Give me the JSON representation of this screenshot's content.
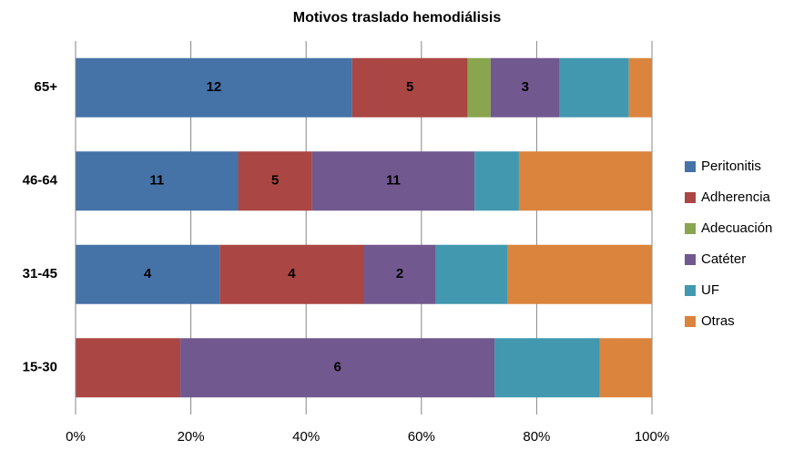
{
  "chart_data": {
    "type": "bar",
    "orientation": "horizontal",
    "stacked": "percent",
    "title": "Motivos traslado hemodiálisis",
    "categories": [
      "65+",
      "46-64",
      "31-45",
      "15-30"
    ],
    "series": [
      {
        "name": "Peritonitis",
        "color": "#4572a7",
        "values": [
          12,
          11,
          4,
          0
        ],
        "value_labels": [
          "12",
          "11",
          "4",
          null
        ]
      },
      {
        "name": "Adherencia",
        "color": "#aa4643",
        "values": [
          5,
          5,
          4,
          2
        ],
        "value_labels": [
          "5",
          "5",
          "4",
          null
        ]
      },
      {
        "name": "Adecuación",
        "color": "#89a54e",
        "values": [
          1,
          0,
          0,
          0
        ],
        "value_labels": [
          null,
          null,
          null,
          null
        ]
      },
      {
        "name": "Catéter",
        "color": "#71588f",
        "values": [
          3,
          11,
          2,
          6
        ],
        "value_labels": [
          "3",
          "11",
          "2",
          "6"
        ]
      },
      {
        "name": "UF",
        "color": "#4198af",
        "values": [
          3,
          3,
          2,
          2
        ],
        "value_labels": [
          null,
          null,
          null,
          null
        ]
      },
      {
        "name": "Otras",
        "color": "#db843d",
        "values": [
          1,
          9,
          4,
          1
        ],
        "value_labels": [
          null,
          null,
          null,
          null
        ]
      }
    ],
    "xlim": [
      0,
      100
    ],
    "xticks": [
      {
        "value": 0,
        "label": "0%"
      },
      {
        "value": 20,
        "label": "20%"
      },
      {
        "value": 40,
        "label": "40%"
      },
      {
        "value": 60,
        "label": "60%"
      },
      {
        "value": 80,
        "label": "80%"
      },
      {
        "value": 100,
        "label": "100%"
      }
    ],
    "grid": true,
    "legend": "right"
  }
}
